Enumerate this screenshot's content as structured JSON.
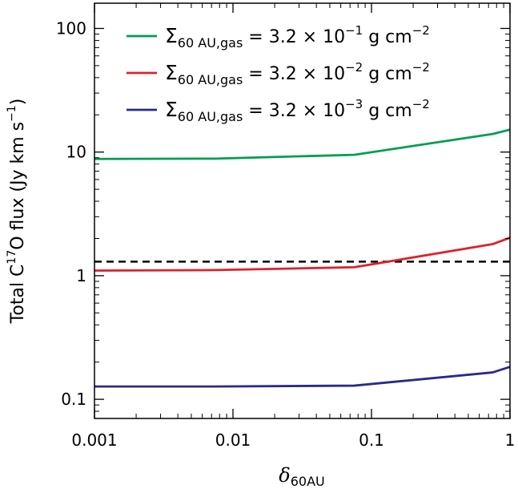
{
  "chart_data": {
    "type": "line",
    "x_scale": "log",
    "y_scale": "log",
    "xlim": [
      0.001,
      1
    ],
    "ylim": [
      0.07,
      160
    ],
    "xlabel": "δ60AU",
    "xlabel_parts": {
      "main": "δ",
      "sub": "60AU"
    },
    "ylabel": "Total C17O flux (Jy km s−1)",
    "ylabel_parts": {
      "pre": "Total C",
      "sup1": "17",
      "mid": "O flux (Jy km s",
      "sup2": "−1",
      "post": ")"
    },
    "x_ticks": [
      {
        "value": 0.001,
        "label": "0.001"
      },
      {
        "value": 0.01,
        "label": "0.01"
      },
      {
        "value": 0.1,
        "label": "0.1"
      },
      {
        "value": 1,
        "label": "1"
      }
    ],
    "y_ticks": [
      {
        "value": 0.1,
        "label": "0.1"
      },
      {
        "value": 1,
        "label": "1"
      },
      {
        "value": 10,
        "label": "10"
      },
      {
        "value": 100,
        "label": "100"
      }
    ],
    "legend_position": "top-right",
    "series": [
      {
        "name": "Σ60 AU,gas = 3.2 × 10−1 g cm−2",
        "label_parts": {
          "sub": "60 AU,gas",
          "pre_exp": " = 3.2 × 10",
          "exp": "−1",
          "post": " g cm",
          "unit_exp": "−2"
        },
        "color": "#009e50",
        "x": [
          0.001,
          0.0075,
          0.075,
          0.75,
          1
        ],
        "values": [
          8.8,
          8.85,
          9.5,
          14,
          15.2
        ]
      },
      {
        "name": "Σ60 AU,gas = 3.2 × 10−2 g cm−2",
        "label_parts": {
          "sub": "60 AU,gas",
          "pre_exp": " = 3.2 × 10",
          "exp": "−2",
          "post": " g cm",
          "unit_exp": "−2"
        },
        "color": "#e0202a",
        "x": [
          0.001,
          0.0075,
          0.075,
          0.75,
          1
        ],
        "values": [
          1.1,
          1.11,
          1.17,
          1.8,
          2.03
        ]
      },
      {
        "name": "Σ60 AU,gas = 3.2 × 10−3 g cm−2",
        "label_parts": {
          "sub": "60 AU,gas",
          "pre_exp": " = 3.2 × 10",
          "exp": "−3",
          "post": " g cm",
          "unit_exp": "−2"
        },
        "color": "#2a2a8a",
        "x": [
          0.001,
          0.0075,
          0.075,
          0.75,
          1
        ],
        "values": [
          0.127,
          0.127,
          0.129,
          0.165,
          0.183
        ]
      }
    ],
    "reference_lines": [
      {
        "orientation": "horizontal",
        "value": 1.3,
        "style": "dashed",
        "color": "#000000"
      }
    ]
  }
}
